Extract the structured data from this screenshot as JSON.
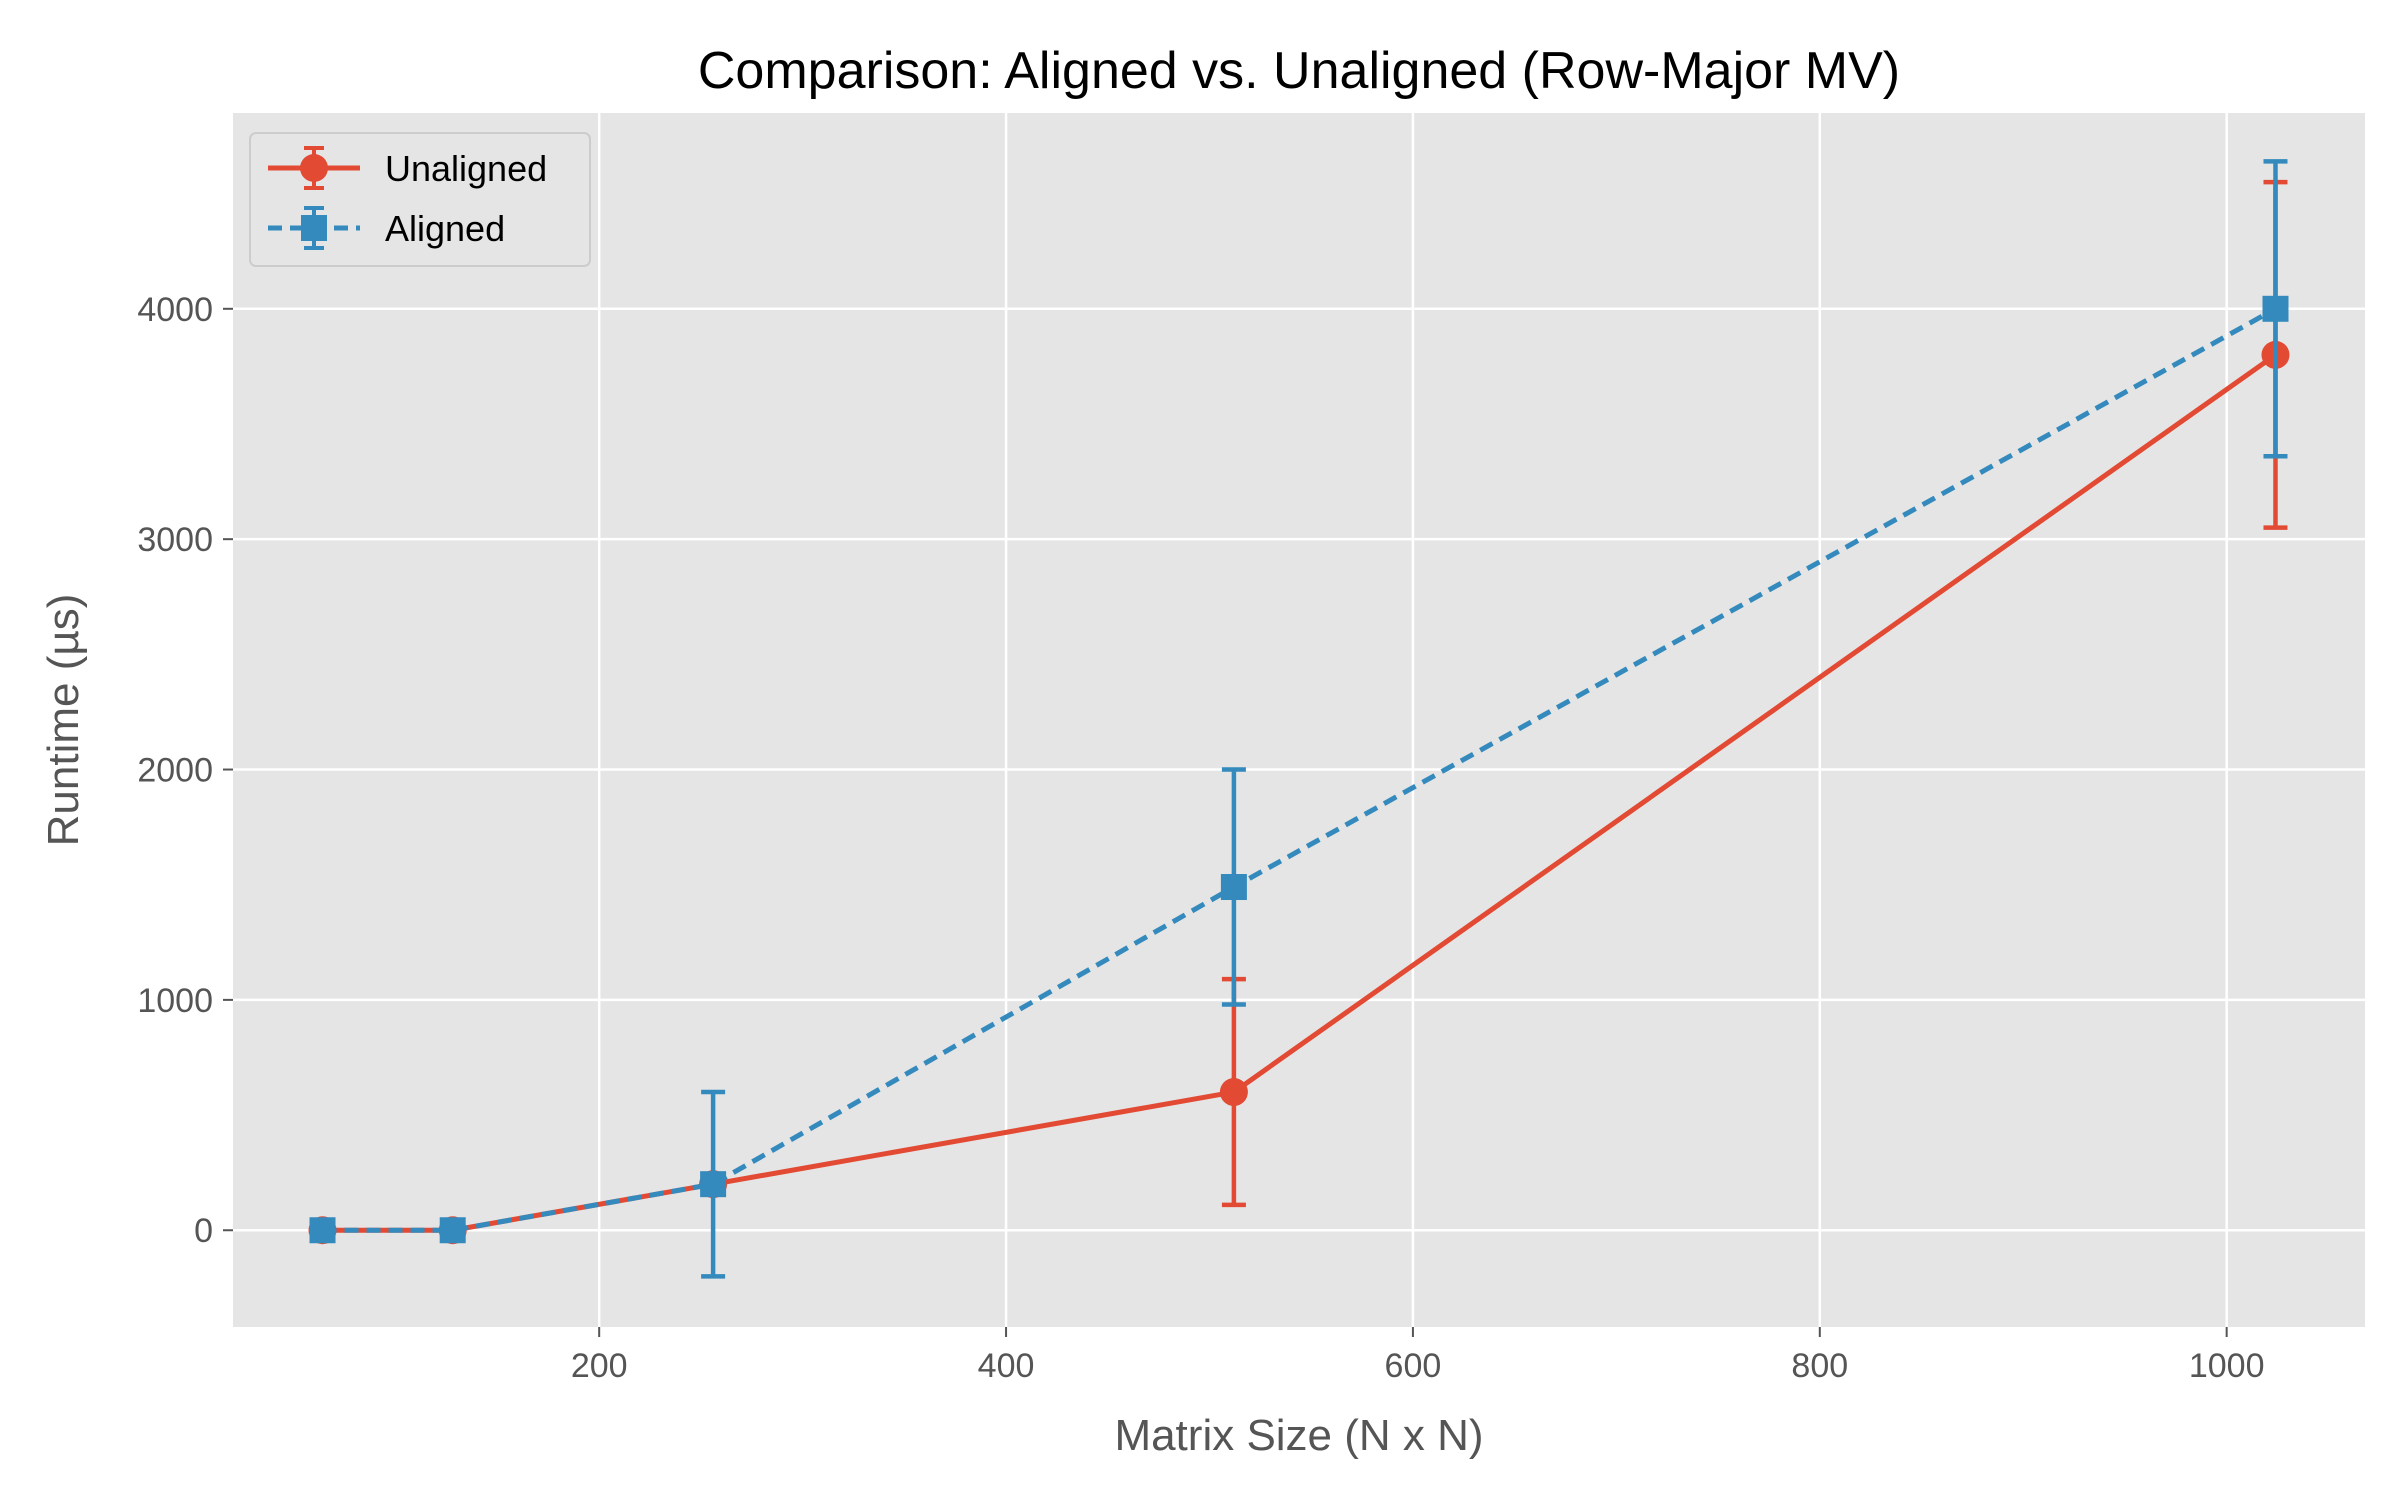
{
  "chart_data": {
    "type": "line",
    "title": "Comparison: Aligned vs. Unaligned (Row-Major MV)",
    "xlabel": "Matrix Size (N x N)",
    "ylabel": "Runtime (µs)",
    "xlim": [
      20,
      1068
    ],
    "ylim": [
      -420,
      4850
    ],
    "xticks": [
      200,
      400,
      600,
      800,
      1000
    ],
    "yticks": [
      0,
      1000,
      2000,
      3000,
      4000
    ],
    "grid": true,
    "legend_position": "top-left",
    "series": [
      {
        "name": "Unaligned",
        "color": "#E24A33",
        "line_style": "solid",
        "marker": "circle",
        "x": [
          64,
          128,
          256,
          512,
          1024
        ],
        "y": [
          0,
          0,
          200,
          600,
          3800
        ],
        "yerr": [
          0,
          0,
          0,
          490,
          750
        ]
      },
      {
        "name": "Aligned",
        "color": "#348ABD",
        "line_style": "dashed",
        "marker": "square",
        "x": [
          64,
          128,
          256,
          512,
          1024
        ],
        "y": [
          0,
          0,
          200,
          1490,
          4000
        ],
        "yerr": [
          0,
          0,
          400,
          510,
          640
        ]
      }
    ]
  }
}
